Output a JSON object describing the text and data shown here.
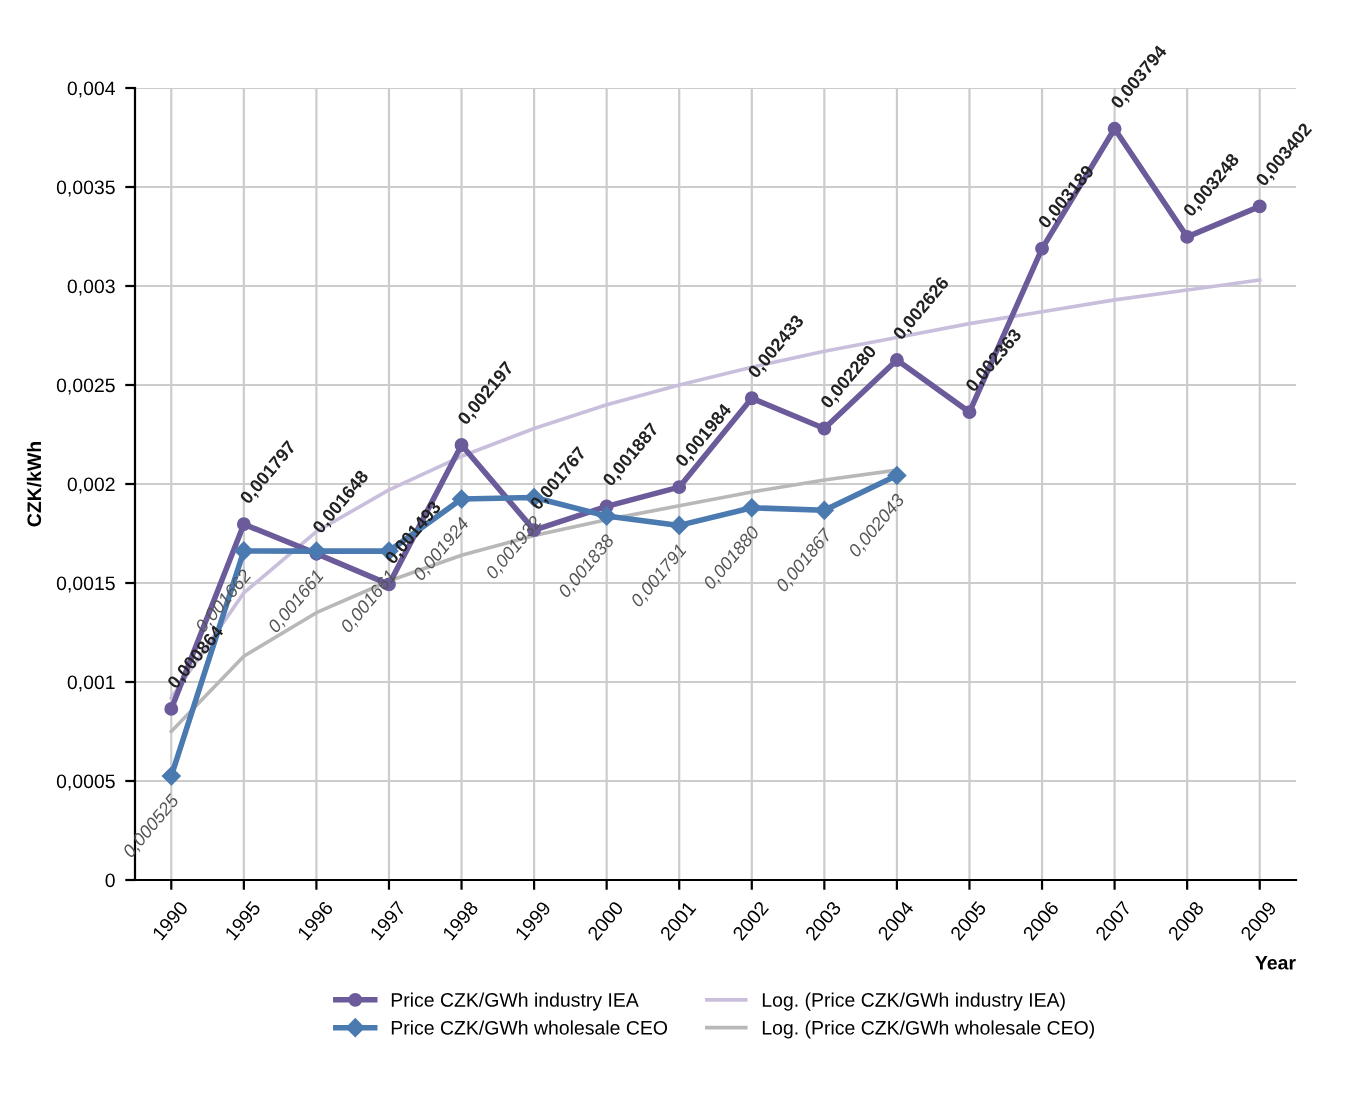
{
  "chart_data": {
    "type": "line",
    "ylabel": "CZK/kWh",
    "xlabel": "Year",
    "categories": [
      "1990",
      "1995",
      "1996",
      "1997",
      "1998",
      "1999",
      "2000",
      "2001",
      "2002",
      "2003",
      "2004",
      "2005",
      "2006",
      "2007",
      "2008",
      "2009"
    ],
    "ylim": [
      0,
      0.004
    ],
    "yticks": [
      {
        "value": 0,
        "label": "0"
      },
      {
        "value": 0.0005,
        "label": "0,0005"
      },
      {
        "value": 0.001,
        "label": "0,001"
      },
      {
        "value": 0.0015,
        "label": "0,0015"
      },
      {
        "value": 0.002,
        "label": "0,002"
      },
      {
        "value": 0.0025,
        "label": "0,0025"
      },
      {
        "value": 0.003,
        "label": "0,003"
      },
      {
        "value": 0.0035,
        "label": "0,0035"
      },
      {
        "value": 0.004,
        "label": "0,004"
      }
    ],
    "grid": true,
    "legend": "bottom",
    "series": [
      {
        "name": "Price CZK/GWh industry IEA",
        "color": "#6b5b9a",
        "marker": "circle",
        "values": [
          0.000864,
          0.001797,
          0.001648,
          0.001493,
          0.002197,
          0.001767,
          0.001887,
          0.001984,
          0.002433,
          0.00228,
          0.002626,
          0.002363,
          0.003189,
          0.003794,
          0.003248,
          0.003402
        ],
        "value_labels": [
          "0,000864",
          "0,001797",
          "0,001648",
          "0,001493",
          "0,002197",
          "0,001767",
          "0,001887",
          "0,001984",
          "0,002433",
          "0,002280",
          "0,002626",
          "0,002363",
          "0,003189",
          "0,003794",
          "0,003248",
          "0,003402"
        ]
      },
      {
        "name": "Price CZK/GWh wholesale CEO",
        "color": "#4a7ab0",
        "marker": "diamond",
        "values": [
          0.000525,
          0.001662,
          0.001661,
          0.001661,
          0.001924,
          0.001932,
          0.001838,
          0.001791,
          0.00188,
          0.001867,
          0.002043,
          null,
          null,
          null,
          null,
          null
        ],
        "value_labels": [
          "0,000525",
          "0,001662",
          "0,001661",
          "0,001661",
          "0,001924",
          "0,001932",
          "0,001838",
          "0,001791",
          "0,001880",
          "0,001867",
          "0,002043",
          null,
          null,
          null,
          null,
          null
        ]
      },
      {
        "name": "Log. (Price CZK/GWh industry IEA)",
        "color": "#c9bfdc",
        "marker": "none",
        "values": [
          0.00092,
          0.00145,
          0.00176,
          0.00197,
          0.00214,
          0.00228,
          0.0024,
          0.0025,
          0.00259,
          0.00267,
          0.00274,
          0.00281,
          0.00287,
          0.00293,
          0.00298,
          0.00303
        ]
      },
      {
        "name": "Log. (Price CZK/GWh wholesale CEO)",
        "color": "#b8b8b8",
        "marker": "none",
        "values": [
          0.00075,
          0.00113,
          0.00135,
          0.00151,
          0.00164,
          0.00174,
          0.00182,
          0.00189,
          0.00196,
          0.00202,
          0.00207,
          null,
          null,
          null,
          null,
          null
        ]
      }
    ]
  }
}
